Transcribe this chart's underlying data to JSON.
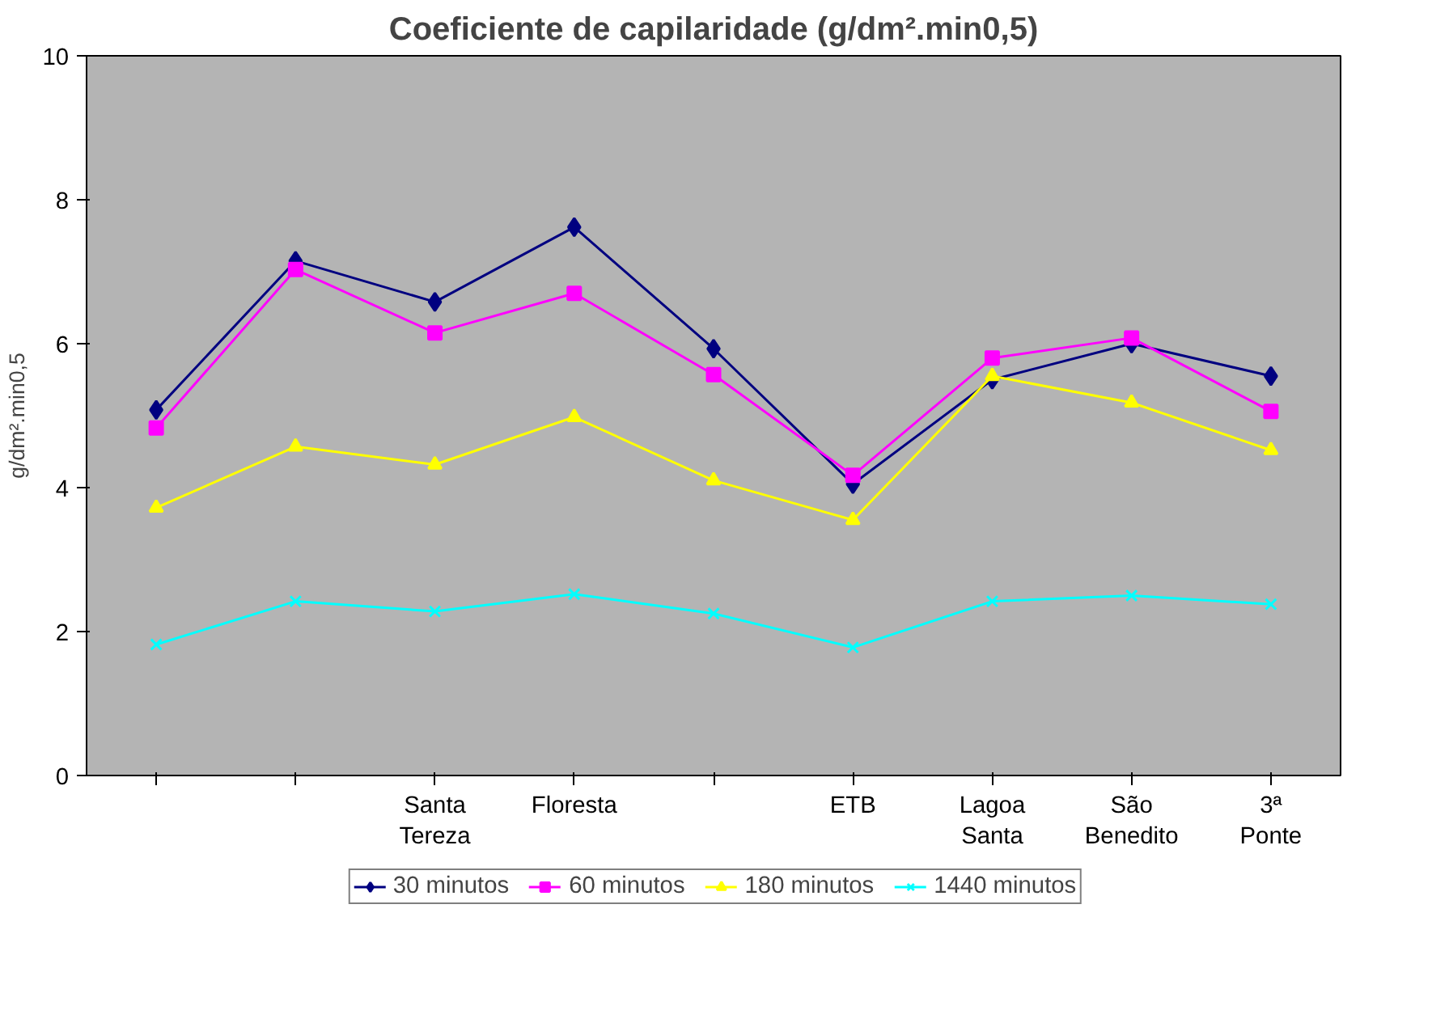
{
  "chart_data": {
    "type": "line",
    "title": "Coeficiente de capilaridade (g/dm².min0,5)",
    "ylabel": "g/dm².min0,5",
    "categories": [
      null,
      null,
      "Santa Tereza",
      "Floresta",
      null,
      "ETB",
      "Lagoa Santa",
      "São Benedito",
      "3ª Ponte"
    ],
    "ylim": [
      0,
      10
    ],
    "yticks": [
      0,
      2,
      4,
      6,
      8,
      10
    ],
    "grid": false,
    "legend": "bottom",
    "series": [
      {
        "name": "30 minutos",
        "color": "#000080",
        "marker": "diamond",
        "values": [
          5.08,
          7.15,
          6.58,
          7.62,
          5.93,
          4.05,
          5.5,
          6.0,
          5.55
        ]
      },
      {
        "name": "60 minutos",
        "color": "#ff00ff",
        "marker": "square",
        "values": [
          4.83,
          7.03,
          6.15,
          6.7,
          5.57,
          4.17,
          5.8,
          6.08,
          5.06
        ]
      },
      {
        "name": "180 minutos",
        "color": "#ffff00",
        "marker": "triangle",
        "values": [
          3.72,
          4.57,
          4.32,
          4.98,
          4.1,
          3.55,
          5.55,
          5.18,
          4.52
        ]
      },
      {
        "name": "1440 minutos",
        "color": "#00ffff",
        "marker": "cross",
        "values": [
          1.82,
          2.42,
          2.28,
          2.52,
          2.25,
          1.78,
          2.42,
          2.5,
          2.38
        ]
      }
    ]
  }
}
